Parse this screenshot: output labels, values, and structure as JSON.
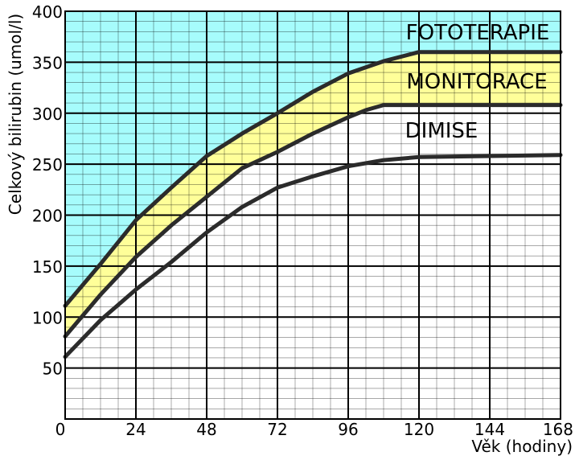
{
  "chart_data": {
    "type": "area",
    "xlabel": "Věk (hodiny)",
    "ylabel": "Celkový bilirubin (umol/l)",
    "xlim": [
      0,
      168
    ],
    "ylim": [
      0,
      400
    ],
    "xticks": [
      0,
      24,
      48,
      72,
      96,
      120,
      144,
      168
    ],
    "yticks": [
      50,
      100,
      150,
      200,
      250,
      300,
      350,
      400
    ],
    "minor_x_step": 6,
    "minor_y_step": 10,
    "grid": true,
    "series": [
      {
        "x": [
          0,
          12,
          24,
          36,
          48,
          60,
          72,
          84,
          96,
          108,
          120,
          168
        ],
        "y": [
          111,
          152,
          195,
          227,
          258,
          280,
          300,
          321,
          339,
          351,
          360,
          360
        ]
      },
      {
        "x": [
          0,
          12,
          24,
          36,
          48,
          60,
          72,
          84,
          96,
          102,
          108,
          168
        ],
        "y": [
          81,
          122,
          159,
          190,
          218,
          246,
          262,
          280,
          296,
          303,
          308,
          308
        ]
      },
      {
        "x": [
          0,
          12,
          24,
          36,
          48,
          60,
          72,
          84,
          96,
          108,
          120,
          144,
          168
        ],
        "y": [
          61,
          97,
          127,
          154,
          183,
          208,
          227,
          238,
          248,
          254,
          257,
          258,
          259
        ]
      }
    ],
    "zones": [
      {
        "label": "FOTOTERAPIE",
        "color": "#a6fcfc"
      },
      {
        "label": "MONITORACE",
        "color": "#ffff99"
      },
      {
        "label": "DIMISE",
        "color": "#ffffff"
      }
    ],
    "line_color": "#2b2b2b",
    "grid_color": "#000000"
  }
}
